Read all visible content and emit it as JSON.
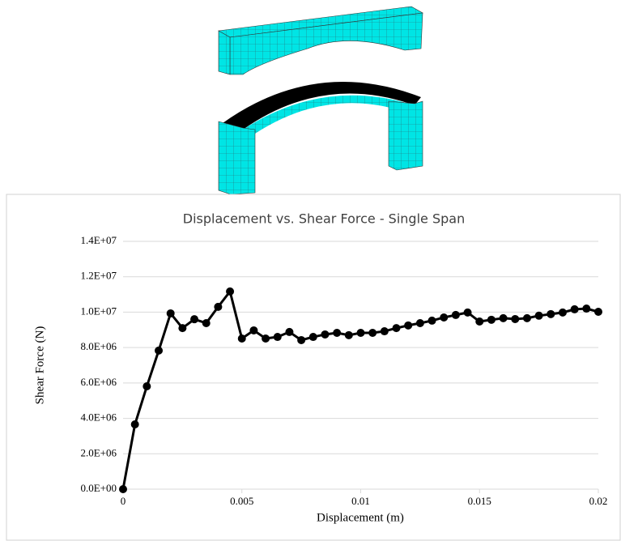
{
  "chart_data": {
    "type": "line",
    "title": "Displacement vs. Shear Force - Single Span",
    "x_label": "Displacement (m)",
    "y_label": "Shear Force (N)",
    "x": [
      0,
      0.0005,
      0.001,
      0.0015,
      0.002,
      0.0025,
      0.003,
      0.0035,
      0.004,
      0.0045,
      0.005,
      0.0055,
      0.006,
      0.0065,
      0.007,
      0.0075,
      0.008,
      0.0085,
      0.009,
      0.0095,
      0.01,
      0.0105,
      0.011,
      0.0115,
      0.012,
      0.0125,
      0.013,
      0.0135,
      0.014,
      0.0145,
      0.015,
      0.0155,
      0.016,
      0.0165,
      0.017,
      0.0175,
      0.018,
      0.0185,
      0.019,
      0.0195,
      0.02
    ],
    "series": [
      {
        "color": "#000000",
        "values": [
          0,
          3660000,
          5810000,
          7830000,
          9930000,
          9100000,
          9600000,
          9380000,
          10300000,
          11170000,
          8510000,
          8970000,
          8510000,
          8600000,
          8880000,
          8420000,
          8600000,
          8740000,
          8830000,
          8700000,
          8830000,
          8830000,
          8920000,
          9100000,
          9250000,
          9380000,
          9520000,
          9700000,
          9840000,
          9980000,
          9470000,
          9570000,
          9660000,
          9610000,
          9660000,
          9800000,
          9890000,
          9980000,
          10160000,
          10200000,
          10020000
        ]
      }
    ],
    "xlim": [
      0,
      0.02
    ],
    "xticks": [
      0,
      0.005,
      0.01,
      0.015,
      0.02
    ],
    "ylim": [
      0,
      14000000
    ],
    "yticks": [
      {
        "value": 0,
        "label": "0.0E+00"
      },
      {
        "value": 2000000,
        "label": "2.0E+06"
      },
      {
        "value": 4000000,
        "label": "4.0E+06"
      },
      {
        "value": 6000000,
        "label": "6.0E+06"
      },
      {
        "value": 8000000,
        "label": "8.0E+06"
      },
      {
        "value": 10000000,
        "label": "1.0E+07"
      },
      {
        "value": 12000000,
        "label": "1.2E+07"
      },
      {
        "value": 14000000,
        "label": "1.4E+07"
      }
    ],
    "grid": true
  }
}
